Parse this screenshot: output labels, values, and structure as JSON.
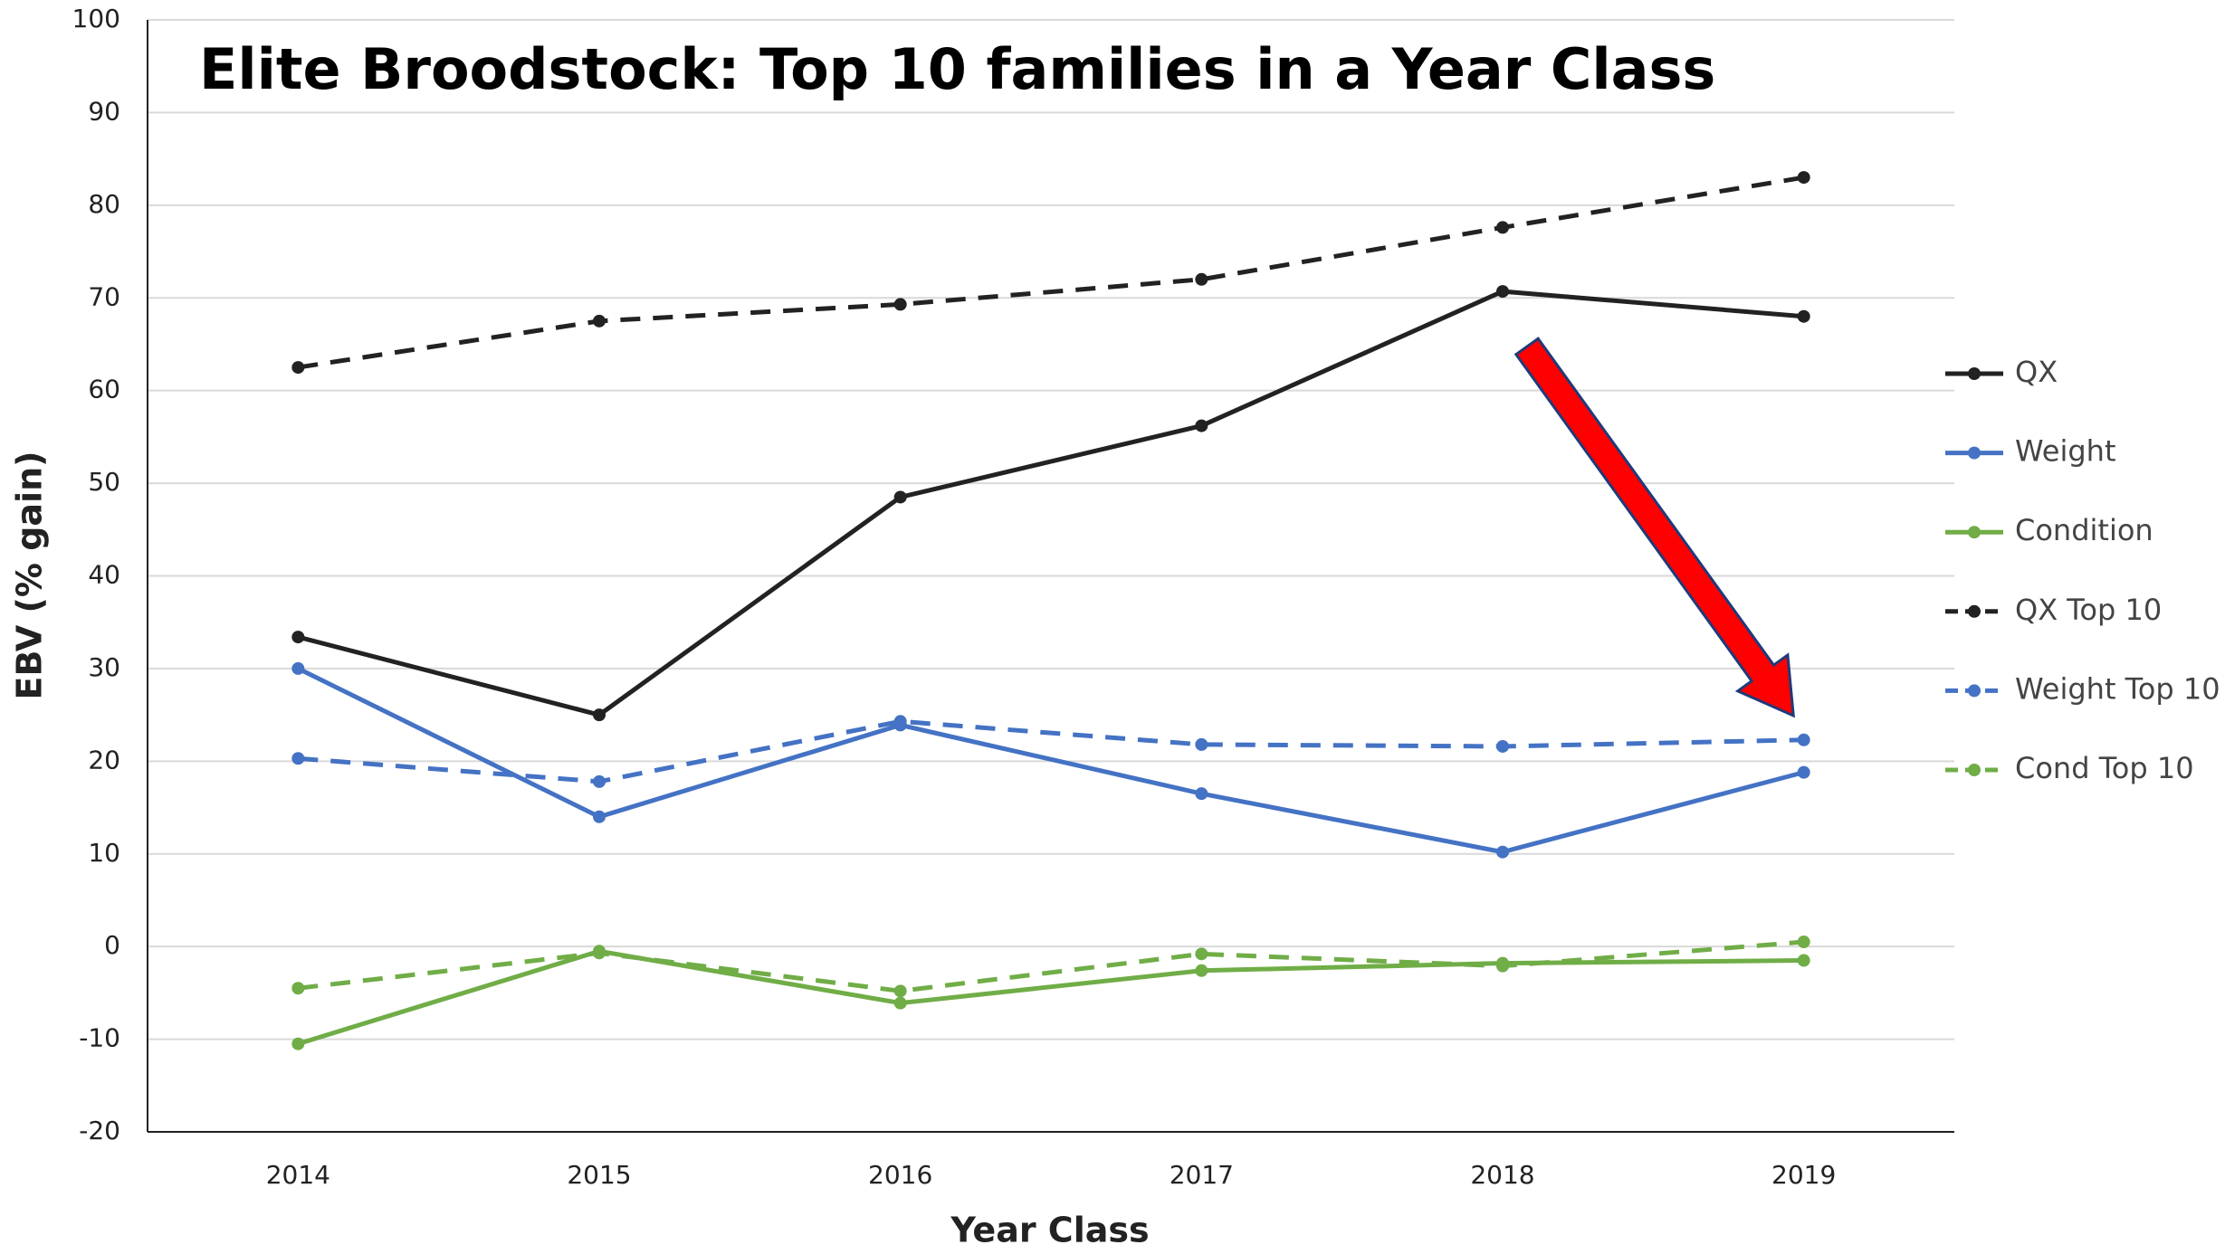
{
  "chart_data": {
    "type": "line",
    "title": "Elite Broodstock: Top 10 families in a Year Class",
    "x_label": "Year Class",
    "y_label": "EBV (% gain)",
    "categories": [
      "2014",
      "2015",
      "2016",
      "2017",
      "2018",
      "2019"
    ],
    "series": [
      {
        "name": "QX",
        "color": "#222222",
        "dashed": false,
        "values": [
          33.4,
          25,
          48.5,
          56.2,
          70.7,
          68
        ]
      },
      {
        "name": "Weight",
        "color": "#4472c4",
        "dashed": false,
        "values": [
          30,
          14,
          23.9,
          16.5,
          10.2,
          18.8
        ]
      },
      {
        "name": "Condition",
        "color": "#70ad47",
        "dashed": false,
        "values": [
          -10.5,
          -0.5,
          -6.1,
          -2.6,
          -1.8,
          -1.5
        ]
      },
      {
        "name": "QX Top 10",
        "color": "#222222",
        "dashed": true,
        "values": [
          62.5,
          67.5,
          69.3,
          72,
          77.6,
          83
        ]
      },
      {
        "name": "Weight Top 10",
        "color": "#4472c4",
        "dashed": true,
        "values": [
          20.3,
          17.8,
          24.3,
          21.8,
          21.6,
          22.3
        ]
      },
      {
        "name": "Cond Top 10",
        "color": "#70ad47",
        "dashed": true,
        "values": [
          -4.5,
          -0.7,
          -4.8,
          -0.8,
          -2.1,
          0.5
        ]
      }
    ],
    "ylim": [
      -20,
      100
    ],
    "yticks": [
      -20,
      -10,
      0,
      10,
      20,
      30,
      40,
      50,
      60,
      70,
      80,
      90,
      100
    ],
    "grid": true,
    "legend": "right"
  }
}
